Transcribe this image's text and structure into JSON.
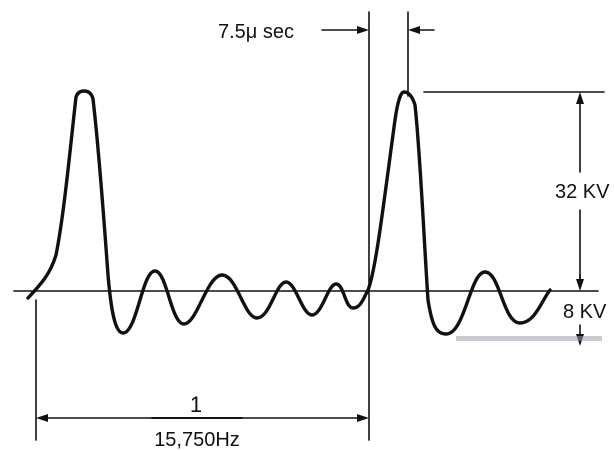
{
  "labels": {
    "pulse_width": "7.5μ sec",
    "peak_voltage": "32 KV",
    "negative_voltage": "8 KV",
    "period_numerator": "1",
    "period_denominator": "15,750Hz"
  },
  "colors": {
    "ink": "#111111",
    "background": "#ffffff",
    "fade_bar": "#9aa3ad"
  }
}
